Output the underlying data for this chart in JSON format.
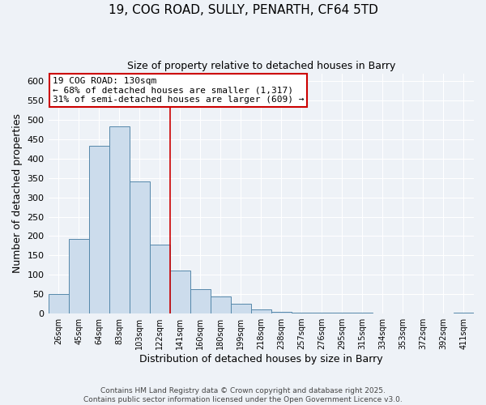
{
  "title": "19, COG ROAD, SULLY, PENARTH, CF64 5TD",
  "subtitle": "Size of property relative to detached houses in Barry",
  "xlabel": "Distribution of detached houses by size in Barry",
  "ylabel": "Number of detached properties",
  "bar_labels": [
    "26sqm",
    "45sqm",
    "64sqm",
    "83sqm",
    "103sqm",
    "122sqm",
    "141sqm",
    "160sqm",
    "180sqm",
    "199sqm",
    "218sqm",
    "238sqm",
    "257sqm",
    "276sqm",
    "295sqm",
    "315sqm",
    "334sqm",
    "353sqm",
    "372sqm",
    "392sqm",
    "411sqm"
  ],
  "bar_values": [
    50,
    192,
    432,
    483,
    340,
    178,
    110,
    62,
    44,
    25,
    10,
    5,
    3,
    2,
    2,
    2,
    1,
    1,
    0,
    0,
    3
  ],
  "bar_color": "#ccdcec",
  "bar_edge_color": "#5588aa",
  "property_label": "19 COG ROAD: 130sqm",
  "annotation_line1": "← 68% of detached houses are smaller (1,317)",
  "annotation_line2": "31% of semi-detached houses are larger (609) →",
  "vline_x_index": 5.5,
  "vline_color": "#cc0000",
  "annotation_box_color": "#cc0000",
  "ylim": [
    0,
    620
  ],
  "yticks": [
    0,
    50,
    100,
    150,
    200,
    250,
    300,
    350,
    400,
    450,
    500,
    550,
    600
  ],
  "background_color": "#eef2f7",
  "plot_bg_color": "#eef2f7",
  "grid_color": "#ffffff",
  "footer1": "Contains HM Land Registry data © Crown copyright and database right 2025.",
  "footer2": "Contains public sector information licensed under the Open Government Licence v3.0."
}
